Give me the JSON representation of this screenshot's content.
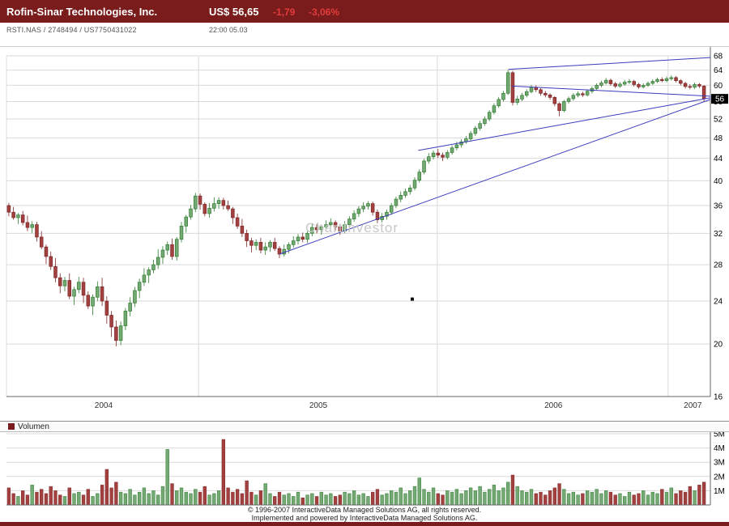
{
  "header": {
    "title": "Rofin-Sinar Technologies, Inc.",
    "price": "US$ 56,65",
    "change": "-1,79",
    "change_pct": "-3,06%",
    "symbol_line": "RSTI.NAS   /   2748494   /   US7750431022",
    "timestamp": "22:00   05.03"
  },
  "watermark": "ChartInvestor",
  "price_tag": "56",
  "volume_legend": "Volumen",
  "footer": {
    "line1": "© 1996-2007 InteractiveData Managed Solutions  AG, all rights reserved.",
    "line2": "Implemented and powered by InteractiveData Managed Solutions  AG."
  },
  "colors": {
    "header_bg": "#7a1c1c",
    "up_fill": "#74a874",
    "up_stroke": "#2f7d2f",
    "down_fill": "#a34040",
    "down_stroke": "#7c2626",
    "trendline": "#3b3bbb",
    "grid": "#d9d9d9",
    "watermark": "#c8c8c8"
  },
  "chart_data": {
    "type": "candlestick",
    "scale": "log",
    "legend_position": "none",
    "price_axis": {
      "position": "right",
      "range": [
        16,
        68
      ],
      "ticks": [
        68,
        64,
        60,
        56,
        52,
        48,
        44,
        40,
        36,
        32,
        28,
        24,
        20,
        16
      ]
    },
    "x_axis": {
      "year_labels": [
        {
          "label": "2004",
          "f": 0.138
        },
        {
          "label": "2005",
          "f": 0.443
        },
        {
          "label": "2006",
          "f": 0.777
        },
        {
          "label": "2007",
          "f": 0.975
        }
      ],
      "year_gridlines_f": [
        0.273,
        0.612,
        0.94
      ]
    },
    "current_price": 56.65,
    "candles": [
      [
        36.0,
        36.4,
        34.4,
        35.0
      ],
      [
        35.0,
        35.8,
        33.9,
        34.2
      ],
      [
        34.2,
        34.9,
        33.3,
        34.6
      ],
      [
        34.6,
        35.2,
        33.1,
        33.5
      ],
      [
        33.5,
        34.5,
        32.3,
        32.8
      ],
      [
        32.8,
        33.7,
        32.0,
        33.2
      ],
      [
        33.2,
        33.6,
        30.9,
        31.5
      ],
      [
        31.5,
        32.3,
        29.9,
        30.2
      ],
      [
        30.2,
        30.5,
        28.1,
        29.0
      ],
      [
        29.0,
        29.6,
        27.4,
        27.8
      ],
      [
        27.8,
        28.8,
        26.0,
        26.5
      ],
      [
        26.5,
        27.0,
        24.8,
        25.6
      ],
      [
        25.6,
        26.6,
        25.0,
        26.2
      ],
      [
        26.2,
        27.0,
        24.2,
        24.5
      ],
      [
        24.5,
        25.5,
        23.6,
        25.2
      ],
      [
        25.2,
        26.6,
        24.8,
        26.0
      ],
      [
        26.0,
        26.5,
        23.8,
        24.6
      ],
      [
        24.6,
        25.0,
        23.2,
        23.5
      ],
      [
        23.5,
        24.7,
        22.6,
        24.4
      ],
      [
        24.4,
        26.1,
        24.0,
        25.5
      ],
      [
        25.5,
        26.5,
        23.5,
        24.0
      ],
      [
        24.0,
        24.5,
        21.8,
        22.6
      ],
      [
        22.6,
        23.0,
        20.6,
        21.5
      ],
      [
        21.5,
        22.1,
        19.8,
        20.3
      ],
      [
        20.3,
        22.0,
        19.9,
        21.6
      ],
      [
        21.6,
        23.3,
        21.2,
        23.0
      ],
      [
        23.0,
        24.4,
        22.5,
        23.8
      ],
      [
        23.8,
        25.5,
        23.4,
        25.1
      ],
      [
        25.1,
        26.4,
        24.3,
        26.0
      ],
      [
        26.0,
        27.6,
        25.6,
        26.8
      ],
      [
        26.8,
        27.7,
        25.9,
        27.4
      ],
      [
        27.4,
        28.6,
        27.0,
        28.0
      ],
      [
        28.0,
        29.9,
        27.5,
        28.9
      ],
      [
        28.9,
        30.3,
        28.1,
        29.8
      ],
      [
        29.8,
        30.9,
        29.2,
        30.5
      ],
      [
        30.5,
        31.3,
        28.6,
        29.0
      ],
      [
        29.0,
        31.5,
        28.5,
        31.2
      ],
      [
        31.2,
        33.6,
        30.8,
        33.0
      ],
      [
        33.0,
        34.6,
        32.1,
        34.3
      ],
      [
        34.3,
        36.1,
        33.9,
        35.5
      ],
      [
        35.5,
        38.0,
        35.0,
        37.5
      ],
      [
        37.5,
        37.9,
        35.4,
        36.2
      ],
      [
        36.2,
        36.5,
        34.4,
        34.8
      ],
      [
        34.8,
        36.4,
        34.2,
        35.6
      ],
      [
        35.6,
        37.3,
        35.1,
        36.3
      ],
      [
        36.3,
        37.3,
        35.5,
        36.8
      ],
      [
        36.8,
        37.2,
        35.4,
        36.0
      ],
      [
        36.0,
        36.8,
        35.2,
        35.5
      ],
      [
        35.5,
        35.8,
        33.3,
        34.2
      ],
      [
        34.2,
        34.8,
        32.6,
        33.0
      ],
      [
        33.0,
        34.0,
        31.5,
        32.0
      ],
      [
        32.0,
        32.5,
        30.2,
        31.0
      ],
      [
        31.0,
        31.4,
        29.5,
        30.4
      ],
      [
        30.4,
        31.2,
        29.8,
        30.8
      ],
      [
        30.8,
        31.4,
        29.4,
        29.8
      ],
      [
        29.8,
        30.8,
        29.2,
        30.2
      ],
      [
        30.2,
        31.1,
        29.6,
        30.8
      ],
      [
        30.8,
        31.4,
        29.7,
        30.0
      ],
      [
        30.0,
        30.3,
        28.8,
        29.3
      ],
      [
        29.3,
        30.5,
        29.0,
        29.9
      ],
      [
        29.9,
        30.8,
        29.4,
        30.5
      ],
      [
        30.5,
        31.6,
        30.1,
        31.0
      ],
      [
        31.0,
        31.9,
        30.5,
        31.5
      ],
      [
        31.5,
        32.1,
        30.8,
        31.2
      ],
      [
        31.2,
        32.3,
        30.7,
        32.0
      ],
      [
        32.0,
        33.4,
        31.6,
        32.8
      ],
      [
        32.8,
        33.3,
        32.0,
        32.5
      ],
      [
        32.5,
        33.2,
        31.8,
        32.9
      ],
      [
        32.9,
        33.8,
        32.5,
        33.2
      ],
      [
        33.2,
        34.1,
        32.8,
        33.5
      ],
      [
        33.5,
        33.8,
        32.4,
        32.9
      ],
      [
        32.9,
        33.3,
        31.8,
        32.3
      ],
      [
        32.3,
        33.7,
        32.0,
        33.2
      ],
      [
        33.2,
        34.4,
        32.8,
        34.0
      ],
      [
        34.0,
        35.3,
        33.6,
        34.8
      ],
      [
        34.8,
        35.9,
        34.3,
        35.5
      ],
      [
        35.5,
        36.5,
        35.0,
        35.9
      ],
      [
        35.9,
        36.7,
        35.4,
        36.3
      ],
      [
        36.3,
        36.6,
        34.5,
        35.0
      ],
      [
        35.0,
        35.4,
        33.4,
        33.9
      ],
      [
        33.9,
        34.9,
        33.5,
        34.4
      ],
      [
        34.4,
        35.4,
        33.9,
        35.0
      ],
      [
        35.0,
        36.4,
        34.6,
        36.0
      ],
      [
        36.0,
        37.4,
        35.6,
        37.0
      ],
      [
        37.0,
        38.2,
        36.5,
        37.6
      ],
      [
        37.6,
        38.7,
        37.2,
        38.2
      ],
      [
        38.2,
        39.3,
        37.7,
        38.8
      ],
      [
        38.8,
        40.6,
        38.4,
        40.1
      ],
      [
        40.1,
        42.0,
        39.7,
        41.5
      ],
      [
        41.5,
        43.9,
        41.1,
        43.5
      ],
      [
        43.5,
        45.0,
        43.0,
        44.3
      ],
      [
        44.3,
        45.5,
        43.8,
        45.0
      ],
      [
        45.0,
        45.8,
        44.1,
        44.6
      ],
      [
        44.6,
        45.1,
        43.5,
        44.2
      ],
      [
        44.2,
        45.6,
        43.8,
        45.1
      ],
      [
        45.1,
        46.5,
        44.7,
        46.0
      ],
      [
        46.0,
        47.2,
        45.5,
        46.6
      ],
      [
        46.6,
        47.7,
        46.1,
        47.2
      ],
      [
        47.2,
        48.4,
        46.8,
        47.8
      ],
      [
        47.8,
        49.4,
        47.3,
        48.9
      ],
      [
        48.9,
        50.5,
        48.4,
        50.0
      ],
      [
        50.0,
        51.6,
        49.5,
        51.0
      ],
      [
        51.0,
        52.6,
        50.5,
        52.0
      ],
      [
        52.0,
        54.0,
        51.5,
        53.5
      ],
      [
        53.5,
        55.6,
        53.0,
        55.0
      ],
      [
        55.0,
        57.1,
        54.5,
        56.5
      ],
      [
        56.5,
        58.6,
        56.0,
        58.0
      ],
      [
        58.0,
        64.0,
        57.6,
        63.3
      ],
      [
        63.3,
        63.8,
        55.1,
        55.8
      ],
      [
        55.8,
        57.4,
        55.2,
        56.6
      ],
      [
        56.6,
        58.1,
        56.1,
        57.5
      ],
      [
        57.5,
        59.0,
        57.0,
        58.4
      ],
      [
        58.4,
        60.1,
        58.0,
        59.5
      ],
      [
        59.5,
        60.0,
        58.3,
        58.9
      ],
      [
        58.9,
        59.3,
        57.4,
        58.0
      ],
      [
        58.0,
        58.6,
        57.0,
        57.6
      ],
      [
        57.6,
        58.0,
        56.4,
        57.0
      ],
      [
        57.0,
        57.3,
        54.9,
        55.5
      ],
      [
        55.5,
        55.8,
        52.6,
        53.9
      ],
      [
        53.9,
        56.4,
        53.5,
        56.0
      ],
      [
        56.0,
        57.2,
        55.5,
        56.7
      ],
      [
        56.7,
        58.0,
        56.2,
        57.5
      ],
      [
        57.5,
        58.5,
        57.0,
        57.9
      ],
      [
        57.9,
        58.4,
        57.1,
        57.6
      ],
      [
        57.6,
        59.0,
        57.2,
        58.5
      ],
      [
        58.5,
        59.7,
        58.0,
        59.2
      ],
      [
        59.2,
        60.5,
        58.8,
        60.0
      ],
      [
        60.0,
        61.2,
        59.5,
        60.6
      ],
      [
        60.6,
        61.9,
        60.2,
        61.3
      ],
      [
        61.3,
        61.7,
        59.9,
        60.4
      ],
      [
        60.4,
        60.9,
        59.3,
        59.8
      ],
      [
        59.8,
        60.8,
        59.4,
        60.3
      ],
      [
        60.3,
        61.4,
        59.9,
        60.8
      ],
      [
        60.8,
        61.6,
        60.3,
        61.0
      ],
      [
        61.0,
        61.4,
        59.7,
        60.2
      ],
      [
        60.2,
        60.6,
        59.1,
        59.6
      ],
      [
        59.6,
        60.5,
        59.2,
        60.0
      ],
      [
        60.0,
        61.0,
        59.6,
        60.5
      ],
      [
        60.5,
        61.5,
        60.1,
        61.0
      ],
      [
        61.0,
        62.0,
        60.6,
        61.5
      ],
      [
        61.5,
        62.1,
        60.8,
        61.2
      ],
      [
        61.2,
        62.3,
        60.8,
        61.7
      ],
      [
        61.7,
        62.6,
        61.2,
        62.0
      ],
      [
        62.0,
        62.4,
        60.7,
        61.2
      ],
      [
        61.2,
        61.6,
        60.0,
        60.5
      ],
      [
        60.5,
        60.9,
        59.2,
        59.7
      ],
      [
        59.7,
        60.3,
        59.0,
        59.5
      ],
      [
        59.5,
        60.7,
        59.1,
        60.2
      ],
      [
        60.2,
        60.6,
        59.3,
        59.8
      ],
      [
        59.8,
        60.0,
        56.0,
        56.65
      ]
    ],
    "volume": {
      "label": "Volumen",
      "unit": "millions",
      "ticks": [
        "1M",
        "2M",
        "3M",
        "4M",
        "5M"
      ],
      "values": [
        1.2,
        0.8,
        0.6,
        1.0,
        0.7,
        1.4,
        0.9,
        1.1,
        0.8,
        1.3,
        1.0,
        0.7,
        0.6,
        1.2,
        0.8,
        0.9,
        0.7,
        1.1,
        0.6,
        0.8,
        1.4,
        2.5,
        1.2,
        1.6,
        0.9,
        0.8,
        1.1,
        0.7,
        0.9,
        1.2,
        0.8,
        1.0,
        0.7,
        1.3,
        3.9,
        1.5,
        1.0,
        1.2,
        0.9,
        0.8,
        1.1,
        0.9,
        1.3,
        0.7,
        0.8,
        1.0,
        4.6,
        1.2,
        0.9,
        1.1,
        0.8,
        1.7,
        0.9,
        0.7,
        1.0,
        1.5,
        0.8,
        0.6,
        0.9,
        0.7,
        0.8,
        0.6,
        0.9,
        0.5,
        0.7,
        0.8,
        0.6,
        0.9,
        0.7,
        0.8,
        0.6,
        0.7,
        0.9,
        0.8,
        1.0,
        0.7,
        0.8,
        0.6,
        0.9,
        1.1,
        0.7,
        0.8,
        1.0,
        0.9,
        1.2,
        0.8,
        1.0,
        1.3,
        1.9,
        1.1,
        0.9,
        1.2,
        0.8,
        0.7,
        1.0,
        0.9,
        1.1,
        0.8,
        1.0,
        1.2,
        1.0,
        1.3,
        0.9,
        1.1,
        1.4,
        1.0,
        1.2,
        1.6,
        2.1,
        1.3,
        1.0,
        0.9,
        1.1,
        0.8,
        0.9,
        0.7,
        1.0,
        1.2,
        1.5,
        1.1,
        0.8,
        0.9,
        0.7,
        0.8,
        1.0,
        0.9,
        1.1,
        0.8,
        1.0,
        0.9,
        0.7,
        0.8,
        0.6,
        0.9,
        0.7,
        0.8,
        1.0,
        0.7,
        0.9,
        0.8,
        1.1,
        0.9,
        1.2,
        0.8,
        1.0,
        0.9,
        1.3,
        1.0,
        1.4,
        1.6
      ]
    },
    "trendlines": [
      {
        "f1": 0.388,
        "p1": 29.3,
        "f2": 1.0,
        "p2": 56.5
      },
      {
        "f1": 0.585,
        "p1": 45.5,
        "f2": 1.0,
        "p2": 56.9
      },
      {
        "f1": 0.713,
        "p1": 64.2,
        "f2": 1.0,
        "p2": 67.5
      },
      {
        "f1": 0.718,
        "p1": 59.8,
        "f2": 1.0,
        "p2": 57.3
      }
    ],
    "marker": {
      "f": 0.5765,
      "price": 24.2
    }
  }
}
